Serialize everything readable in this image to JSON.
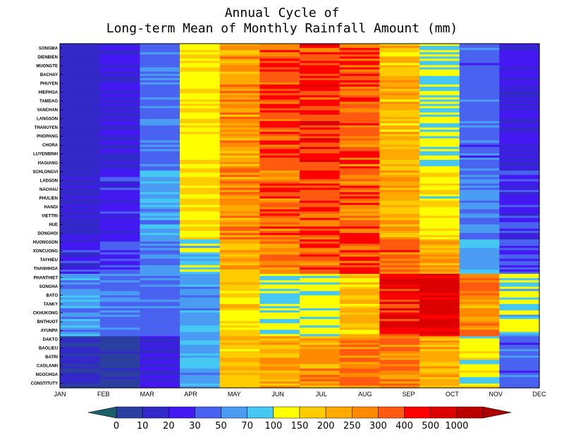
{
  "chart_data": {
    "type": "heatmap",
    "title": "Annual Cycle of",
    "subtitle": "Long-term Mean of Monthly Rainfall Amount (mm)",
    "x": [
      "JAN",
      "FEB",
      "MAR",
      "APR",
      "MAY",
      "JUN",
      "JUL",
      "AUG",
      "SEP",
      "OCT",
      "NOV",
      "DEC"
    ],
    "y": [
      "SONGMA",
      "DIENBIEN",
      "MUONGTE",
      "BACHAY",
      "PHUYEN",
      "HIEPHOA",
      "TAMDAO",
      "VANCHAN",
      "LANGSON",
      "THANUYEN",
      "PHOPANG",
      "CHORA",
      "LUYENBINH",
      "HAGIANG",
      "SCHLONGVI",
      "LADSON",
      "NACHAU",
      "PHULIEN",
      "HANOI",
      "VIETTRI",
      "HUE",
      "DONGHOI",
      "HUONGSON",
      "XONCUONG",
      "TAYHIEU",
      "THANHHOA",
      "PHANTHIET",
      "SONGHA",
      "BATO",
      "TANKY",
      "CKHUKONG",
      "BNTHUOT",
      "AYUNPA",
      "DAKTO",
      "BAOLIEU",
      "BATRI",
      "CAOLANH",
      "NGOCHOA",
      "CONSTITUTY"
    ],
    "colorbar": {
      "labels": [
        "0",
        "10",
        "20",
        "30",
        "50",
        "70",
        "100",
        "150",
        "200",
        "250",
        "300",
        "400",
        "500",
        "1000"
      ],
      "colors": [
        "#1a5f6a",
        "#2a3fa0",
        "#3328c8",
        "#4418f0",
        "#4a62f0",
        "#4a9cf2",
        "#46c8f5",
        "#ffff00",
        "#ffcc00",
        "#ffaa00",
        "#ff8a00",
        "#ff5a10",
        "#ff0000",
        "#dd0000",
        "#bb0000",
        "#aa0000"
      ]
    },
    "bands": [
      {
        "y0": 0,
        "y1": 14,
        "months": [
          15,
          20,
          45,
          140,
          250,
          350,
          400,
          350,
          200,
          100,
          40,
          20
        ]
      },
      {
        "y0": 14,
        "y1": 22,
        "months": [
          20,
          25,
          60,
          150,
          260,
          330,
          370,
          340,
          230,
          140,
          50,
          25
        ]
      },
      {
        "y0": 22,
        "y1": 26,
        "months": [
          25,
          30,
          50,
          90,
          230,
          290,
          330,
          380,
          320,
          220,
          70,
          30
        ]
      },
      {
        "y0": 26,
        "y1": 33,
        "months": [
          60,
          45,
          45,
          60,
          160,
          110,
          120,
          190,
          450,
          600,
          270,
          95
        ]
      },
      {
        "y0": 33,
        "y1": 39,
        "months": [
          10,
          8,
          20,
          60,
          200,
          220,
          250,
          280,
          300,
          220,
          130,
          40
        ]
      }
    ],
    "xlim": [
      "JAN",
      "DEC"
    ],
    "legend": "bottom"
  }
}
